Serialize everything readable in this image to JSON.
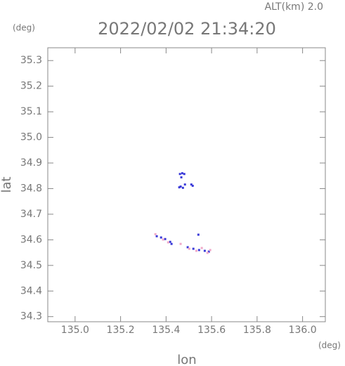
{
  "chart_data": {
    "type": "scatter",
    "title": "2022/02/02 21:34:20",
    "subtitle": "ALT(km) 2.0",
    "y_unit": "(deg)",
    "x_unit": "(deg)",
    "x_label": "lon",
    "y_label": "lat",
    "xlim": [
      134.88,
      136.1
    ],
    "ylim": [
      34.28,
      35.35
    ],
    "xticks": [
      {
        "value": 135.0,
        "label": "135.0"
      },
      135.2,
      135.4,
      135.6,
      135.8,
      {
        "value": 136.0,
        "label": "136.0"
      }
    ],
    "yticks": [
      34.3,
      34.4,
      34.5,
      34.6,
      34.7,
      34.8,
      34.9,
      {
        "value": 35.0,
        "label": "35.0"
      },
      35.1,
      35.2,
      35.3
    ],
    "series": [
      {
        "color": "#3a3ad8",
        "x": [
          135.461,
          135.471,
          135.48,
          135.467,
          135.464,
          135.474,
          135.458,
          135.483,
          135.511,
          135.517,
          135.359,
          135.378,
          135.396,
          135.418,
          135.424,
          135.542,
          135.495,
          135.52,
          135.545,
          135.57,
          135.588
        ],
        "values": [
          34.857,
          34.86,
          34.857,
          34.844,
          34.808,
          34.803,
          34.805,
          34.816,
          34.816,
          34.811,
          34.614,
          34.609,
          34.603,
          34.592,
          34.584,
          34.62,
          34.571,
          34.565,
          34.56,
          34.557,
          34.554
        ]
      },
      {
        "color": "#f0a8c8",
        "x": [
          135.353,
          135.387,
          135.409,
          135.464,
          135.502,
          135.533,
          135.557,
          135.582,
          135.594
        ],
        "values": [
          34.622,
          34.601,
          34.59,
          34.584,
          34.565,
          34.557,
          34.568,
          34.549,
          34.56
        ]
      }
    ]
  }
}
